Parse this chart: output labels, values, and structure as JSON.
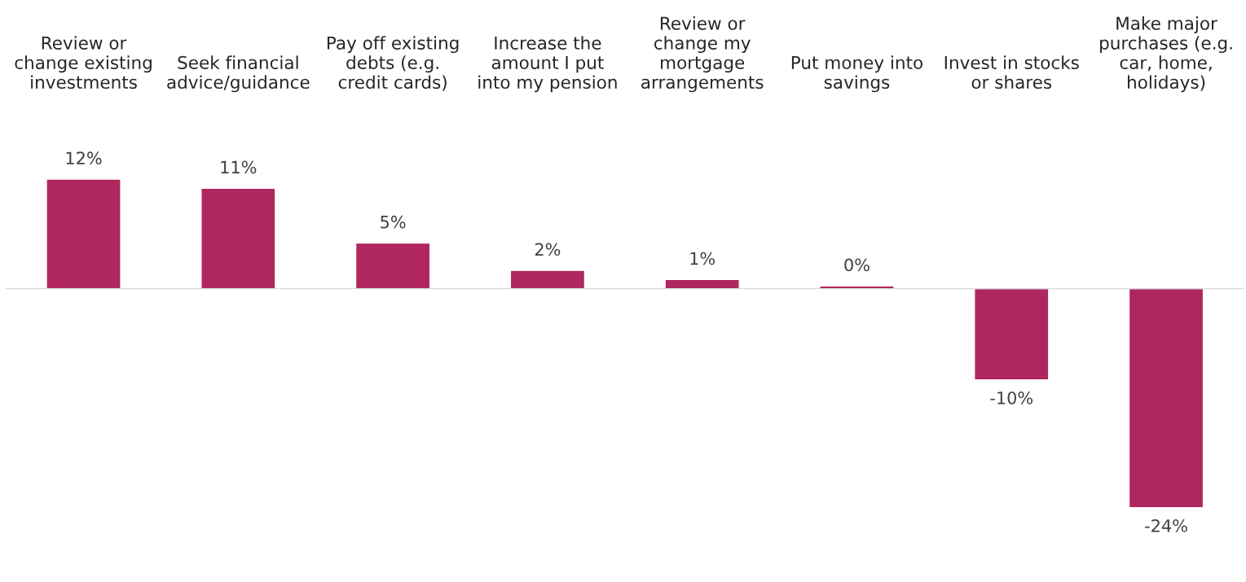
{
  "chart_data": {
    "type": "bar",
    "categories": [
      "Review or\nchange existing\ninvestments",
      "Seek financial\nadvice/guidance",
      "Pay off existing\ndebts (e.g.\ncredit cards)",
      "Increase the\namount I put\ninto my pension",
      "Review or\nchange my\nmortgage\narrangements",
      "Put money into\nsavings",
      "Invest in stocks\nor shares",
      "Make major\npurchases (e.g.\ncar, home,\nholidays)"
    ],
    "values": [
      12,
      11,
      5,
      2,
      1,
      0.3,
      -10,
      -24
    ],
    "value_labels": [
      "12%",
      "11%",
      "5%",
      "2%",
      "1%",
      "0%",
      "-10%",
      "-24%"
    ],
    "color": "#b0265e",
    "grid": false,
    "legend": false
  }
}
